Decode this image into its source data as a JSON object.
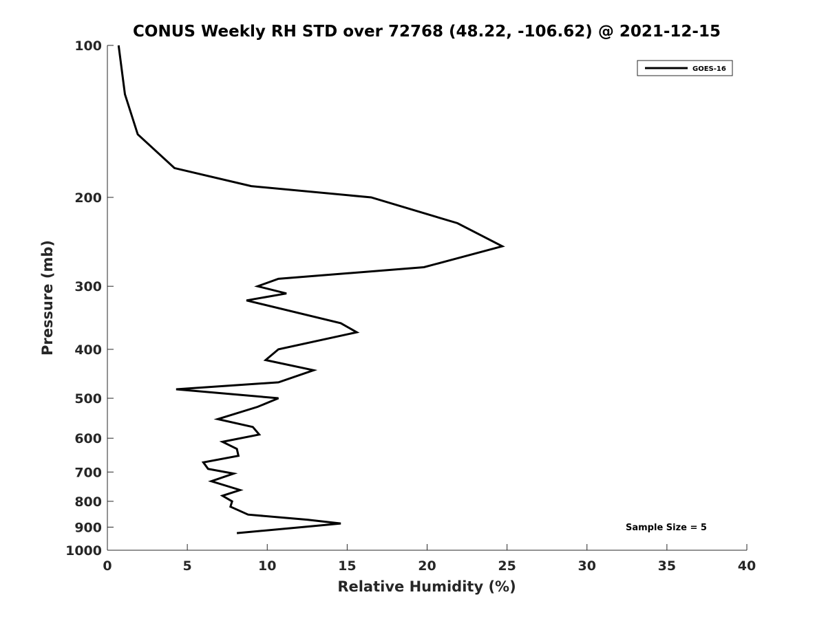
{
  "chart_data": {
    "type": "line",
    "title": "CONUS Weekly RH STD over 72768 (48.22, -106.62) @ 2021-12-15",
    "xlabel": "Relative Humidity (%)",
    "ylabel": "Pressure (mb)",
    "xlim": [
      0,
      40
    ],
    "ylim": [
      100,
      1000
    ],
    "y_scale": "log",
    "y_reversed": true,
    "x_ticks": [
      "0",
      "5",
      "10",
      "15",
      "20",
      "25",
      "30",
      "35",
      "40"
    ],
    "y_ticks": [
      "100",
      "200",
      "300",
      "400",
      "500",
      "600",
      "700",
      "800",
      "900",
      "1000"
    ],
    "legend_position": "top-right",
    "grid": false,
    "annotation": "Sample Size = 5",
    "series": [
      {
        "name": "GOES-16",
        "color": "#000000",
        "points": [
          [
            0.7,
            100
          ],
          [
            1.1,
            125
          ],
          [
            1.9,
            150
          ],
          [
            4.2,
            175
          ],
          [
            9.0,
            190
          ],
          [
            16.5,
            200
          ],
          [
            21.9,
            225
          ],
          [
            24.7,
            250
          ],
          [
            19.8,
            275
          ],
          [
            10.7,
            290
          ],
          [
            9.4,
            300
          ],
          [
            11.2,
            310
          ],
          [
            8.7,
            320
          ],
          [
            14.6,
            355
          ],
          [
            15.6,
            370
          ],
          [
            10.7,
            400
          ],
          [
            9.9,
            420
          ],
          [
            12.9,
            440
          ],
          [
            10.7,
            465
          ],
          [
            4.3,
            480
          ],
          [
            10.7,
            500
          ],
          [
            9.4,
            520
          ],
          [
            6.9,
            550
          ],
          [
            9.1,
            570
          ],
          [
            9.5,
            590
          ],
          [
            7.2,
            610
          ],
          [
            8.1,
            630
          ],
          [
            8.2,
            650
          ],
          [
            6.0,
            670
          ],
          [
            6.3,
            690
          ],
          [
            7.9,
            705
          ],
          [
            6.5,
            730
          ],
          [
            8.3,
            760
          ],
          [
            7.2,
            780
          ],
          [
            7.8,
            800
          ],
          [
            7.7,
            820
          ],
          [
            8.8,
            850
          ],
          [
            12.5,
            870
          ],
          [
            14.6,
            885
          ],
          [
            12.2,
            900
          ],
          [
            8.1,
            925
          ]
        ]
      }
    ]
  }
}
